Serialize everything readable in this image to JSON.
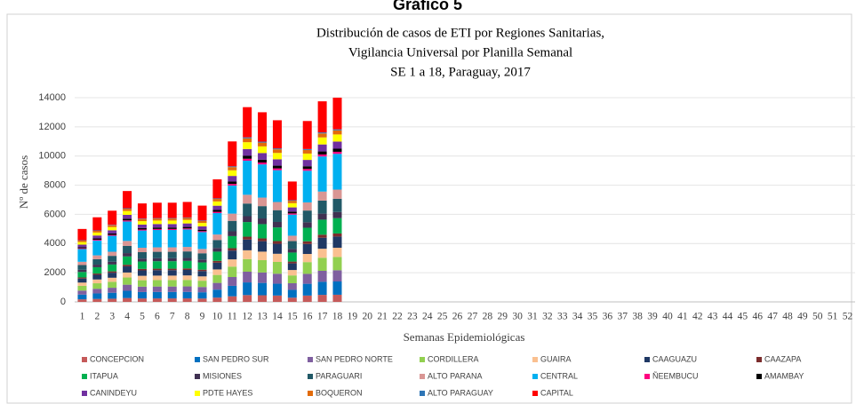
{
  "header": "Gráfico 5",
  "chart_data": {
    "type": "stacked_bar",
    "title": [
      "Distribución  de casos de ETI por Regiones Sanitarias,",
      "Vigilancia Universal por Planilla Semanal",
      "SE 1 a 18, Paraguay,  2017"
    ],
    "x_label": "Semanas Epidemiológicas",
    "y_label": "Nº de casos",
    "categories": [
      "1",
      "2",
      "3",
      "4",
      "5",
      "6",
      "7",
      "8",
      "9",
      "10",
      "11",
      "12",
      "13",
      "14",
      "15",
      "16",
      "17",
      "18",
      "19",
      "20",
      "21",
      "22",
      "23",
      "24",
      "25",
      "26",
      "27",
      "28",
      "29",
      "30",
      "31",
      "32",
      "33",
      "34",
      "35",
      "36",
      "37",
      "38",
      "39",
      "40",
      "41",
      "42",
      "43",
      "44",
      "45",
      "46",
      "47",
      "48",
      "49",
      "50",
      "51",
      "52"
    ],
    "ylim": [
      0,
      14000
    ],
    "yticks": [
      0,
      2000,
      4000,
      6000,
      8000,
      10000,
      12000,
      14000
    ],
    "grid": true,
    "legend": "bottom",
    "series": [
      {
        "name": "CONCEPCION",
        "color": "#c55a5a",
        "values": [
          175,
          203,
          219,
          266,
          236,
          238,
          238,
          240,
          231,
          294,
          385,
          467,
          455,
          436,
          289,
          434,
          481,
          490,
          null,
          null,
          null,
          null,
          null,
          null,
          null,
          null,
          null,
          null,
          null,
          null,
          null,
          null,
          null,
          null,
          null,
          null,
          null,
          null,
          null,
          null,
          null,
          null,
          null,
          null,
          null,
          null,
          null,
          null,
          null,
          null,
          null,
          null
        ]
      },
      {
        "name": "SAN PEDRO SUR",
        "color": "#0070c0",
        "values": [
          325,
          377,
          406,
          494,
          439,
          442,
          442,
          445,
          429,
          546,
          715,
          868,
          845,
          809,
          536,
          806,
          894,
          910,
          null,
          null,
          null,
          null,
          null,
          null,
          null,
          null,
          null,
          null,
          null,
          null,
          null,
          null,
          null,
          null,
          null,
          null,
          null,
          null,
          null,
          null,
          null,
          null,
          null,
          null,
          null,
          null,
          null,
          null,
          null,
          null,
          null,
          null
        ]
      },
      {
        "name": "SAN PEDRO NORTE",
        "color": "#7f5fa0",
        "values": [
          275,
          319,
          344,
          418,
          371,
          374,
          374,
          377,
          363,
          462,
          605,
          734,
          715,
          685,
          454,
          682,
          756,
          770,
          null,
          null,
          null,
          null,
          null,
          null,
          null,
          null,
          null,
          null,
          null,
          null,
          null,
          null,
          null,
          null,
          null,
          null,
          null,
          null,
          null,
          null,
          null,
          null,
          null,
          null,
          null,
          null,
          null,
          null,
          null,
          null,
          null,
          null
        ]
      },
      {
        "name": "CORDILLERA",
        "color": "#92d050",
        "values": [
          325,
          377,
          406,
          494,
          439,
          442,
          442,
          445,
          429,
          546,
          715,
          868,
          845,
          809,
          536,
          806,
          894,
          910,
          null,
          null,
          null,
          null,
          null,
          null,
          null,
          null,
          null,
          null,
          null,
          null,
          null,
          null,
          null,
          null,
          null,
          null,
          null,
          null,
          null,
          null,
          null,
          null,
          null,
          null,
          null,
          null,
          null,
          null,
          null,
          null,
          null,
          null
        ]
      },
      {
        "name": "GUAIRA",
        "color": "#fac090",
        "values": [
          225,
          261,
          281,
          342,
          304,
          306,
          306,
          308,
          297,
          378,
          495,
          601,
          585,
          560,
          371,
          558,
          619,
          630,
          null,
          null,
          null,
          null,
          null,
          null,
          null,
          null,
          null,
          null,
          null,
          null,
          null,
          null,
          null,
          null,
          null,
          null,
          null,
          null,
          null,
          null,
          null,
          null,
          null,
          null,
          null,
          null,
          null,
          null,
          null,
          null,
          null,
          null
        ]
      },
      {
        "name": "CAAGUAZU",
        "color": "#1f3864",
        "values": [
          275,
          319,
          344,
          418,
          371,
          374,
          374,
          377,
          363,
          462,
          605,
          734,
          715,
          685,
          454,
          682,
          756,
          770,
          null,
          null,
          null,
          null,
          null,
          null,
          null,
          null,
          null,
          null,
          null,
          null,
          null,
          null,
          null,
          null,
          null,
          null,
          null,
          null,
          null,
          null,
          null,
          null,
          null,
          null,
          null,
          null,
          null,
          null,
          null,
          null,
          null,
          null
        ]
      },
      {
        "name": "CAAZAPA",
        "color": "#7b2c2c",
        "values": [
          75,
          87,
          94,
          114,
          101,
          102,
          102,
          103,
          99,
          126,
          165,
          200,
          195,
          187,
          124,
          186,
          206,
          210,
          null,
          null,
          null,
          null,
          null,
          null,
          null,
          null,
          null,
          null,
          null,
          null,
          null,
          null,
          null,
          null,
          null,
          null,
          null,
          null,
          null,
          null,
          null,
          null,
          null,
          null,
          null,
          null,
          null,
          null,
          null,
          null,
          null,
          null
        ]
      },
      {
        "name": "ITAPUA",
        "color": "#00b050",
        "values": [
          375,
          435,
          469,
          570,
          506,
          510,
          510,
          514,
          495,
          630,
          825,
          1001,
          975,
          934,
          619,
          930,
          1031,
          1050,
          null,
          null,
          null,
          null,
          null,
          null,
          null,
          null,
          null,
          null,
          null,
          null,
          null,
          null,
          null,
          null,
          null,
          null,
          null,
          null,
          null,
          null,
          null,
          null,
          null,
          null,
          null,
          null,
          null,
          null,
          null,
          null,
          null,
          null
        ]
      },
      {
        "name": "MISIONES",
        "color": "#403152",
        "values": [
          150,
          174,
          188,
          228,
          203,
          204,
          204,
          206,
          198,
          252,
          330,
          401,
          390,
          374,
          248,
          372,
          413,
          420,
          null,
          null,
          null,
          null,
          null,
          null,
          null,
          null,
          null,
          null,
          null,
          null,
          null,
          null,
          null,
          null,
          null,
          null,
          null,
          null,
          null,
          null,
          null,
          null,
          null,
          null,
          null,
          null,
          null,
          null,
          null,
          null,
          null,
          null
        ]
      },
      {
        "name": "PARAGUARI",
        "color": "#215967",
        "values": [
          325,
          377,
          406,
          494,
          439,
          442,
          442,
          445,
          429,
          546,
          715,
          868,
          845,
          809,
          536,
          806,
          894,
          910,
          null,
          null,
          null,
          null,
          null,
          null,
          null,
          null,
          null,
          null,
          null,
          null,
          null,
          null,
          null,
          null,
          null,
          null,
          null,
          null,
          null,
          null,
          null,
          null,
          null,
          null,
          null,
          null,
          null,
          null,
          null,
          null,
          null,
          null
        ]
      },
      {
        "name": "ALTO PARANA",
        "color": "#d99694",
        "values": [
          225,
          261,
          281,
          342,
          304,
          306,
          306,
          308,
          297,
          378,
          495,
          601,
          585,
          560,
          371,
          558,
          619,
          630,
          null,
          null,
          null,
          null,
          null,
          null,
          null,
          null,
          null,
          null,
          null,
          null,
          null,
          null,
          null,
          null,
          null,
          null,
          null,
          null,
          null,
          null,
          null,
          null,
          null,
          null,
          null,
          null,
          null,
          null,
          null,
          null,
          null,
          null
        ]
      },
      {
        "name": "CENTRAL",
        "color": "#00b0f0",
        "values": [
          875,
          1015,
          1094,
          1330,
          1181,
          1190,
          1190,
          1199,
          1155,
          1470,
          1925,
          2336,
          2275,
          2179,
          1444,
          2170,
          2406,
          2450,
          null,
          null,
          null,
          null,
          null,
          null,
          null,
          null,
          null,
          null,
          null,
          null,
          null,
          null,
          null,
          null,
          null,
          null,
          null,
          null,
          null,
          null,
          null,
          null,
          null,
          null,
          null,
          null,
          null,
          null,
          null,
          null,
          null,
          null
        ]
      },
      {
        "name": "ÑEEMBUCU",
        "color": "#ff0080",
        "values": [
          50,
          58,
          63,
          76,
          68,
          68,
          68,
          69,
          66,
          84,
          110,
          134,
          130,
          125,
          83,
          124,
          138,
          140,
          null,
          null,
          null,
          null,
          null,
          null,
          null,
          null,
          null,
          null,
          null,
          null,
          null,
          null,
          null,
          null,
          null,
          null,
          null,
          null,
          null,
          null,
          null,
          null,
          null,
          null,
          null,
          null,
          null,
          null,
          null,
          null,
          null,
          null
        ]
      },
      {
        "name": "AMAMBAY",
        "color": "#000000",
        "values": [
          75,
          87,
          94,
          114,
          101,
          102,
          102,
          103,
          99,
          126,
          165,
          200,
          195,
          187,
          124,
          186,
          206,
          210,
          null,
          null,
          null,
          null,
          null,
          null,
          null,
          null,
          null,
          null,
          null,
          null,
          null,
          null,
          null,
          null,
          null,
          null,
          null,
          null,
          null,
          null,
          null,
          null,
          null,
          null,
          null,
          null,
          null,
          null,
          null,
          null,
          null,
          null
        ]
      },
      {
        "name": "CANINDEYU",
        "color": "#7030a0",
        "values": [
          175,
          203,
          219,
          266,
          236,
          238,
          238,
          240,
          231,
          294,
          385,
          467,
          455,
          436,
          289,
          434,
          481,
          490,
          null,
          null,
          null,
          null,
          null,
          null,
          null,
          null,
          null,
          null,
          null,
          null,
          null,
          null,
          null,
          null,
          null,
          null,
          null,
          null,
          null,
          null,
          null,
          null,
          null,
          null,
          null,
          null,
          null,
          null,
          null,
          null,
          null,
          null
        ]
      },
      {
        "name": "PDTE HAYES",
        "color": "#ffff00",
        "values": [
          175,
          203,
          219,
          266,
          236,
          238,
          238,
          240,
          231,
          294,
          385,
          467,
          455,
          436,
          289,
          434,
          481,
          490,
          null,
          null,
          null,
          null,
          null,
          null,
          null,
          null,
          null,
          null,
          null,
          null,
          null,
          null,
          null,
          null,
          null,
          null,
          null,
          null,
          null,
          null,
          null,
          null,
          null,
          null,
          null,
          null,
          null,
          null,
          null,
          null,
          null,
          null
        ]
      },
      {
        "name": "BOQUERON",
        "color": "#e26b0a",
        "values": [
          100,
          116,
          125,
          152,
          135,
          136,
          136,
          137,
          132,
          168,
          220,
          267,
          260,
          249,
          165,
          248,
          275,
          280,
          null,
          null,
          null,
          null,
          null,
          null,
          null,
          null,
          null,
          null,
          null,
          null,
          null,
          null,
          null,
          null,
          null,
          null,
          null,
          null,
          null,
          null,
          null,
          null,
          null,
          null,
          null,
          null,
          null,
          null,
          null,
          null,
          null,
          null
        ]
      },
      {
        "name": "ALTO PARAGUAY",
        "color": "#2e75b6",
        "values": [
          25,
          29,
          31,
          38,
          34,
          34,
          34,
          34,
          33,
          42,
          55,
          67,
          65,
          62,
          41,
          62,
          69,
          70,
          null,
          null,
          null,
          null,
          null,
          null,
          null,
          null,
          null,
          null,
          null,
          null,
          null,
          null,
          null,
          null,
          null,
          null,
          null,
          null,
          null,
          null,
          null,
          null,
          null,
          null,
          null,
          null,
          null,
          null,
          null,
          null,
          null,
          null
        ]
      },
      {
        "name": "CAPITAL",
        "color": "#ff0000",
        "values": [
          775,
          899,
          969,
          1178,
          1046,
          1054,
          1054,
          1062,
          1023,
          1302,
          1705,
          2069,
          2015,
          1930,
          1279,
          1922,
          2131,
          2170,
          null,
          null,
          null,
          null,
          null,
          null,
          null,
          null,
          null,
          null,
          null,
          null,
          null,
          null,
          null,
          null,
          null,
          null,
          null,
          null,
          null,
          null,
          null,
          null,
          null,
          null,
          null,
          null,
          null,
          null,
          null,
          null,
          null,
          null
        ]
      }
    ]
  }
}
